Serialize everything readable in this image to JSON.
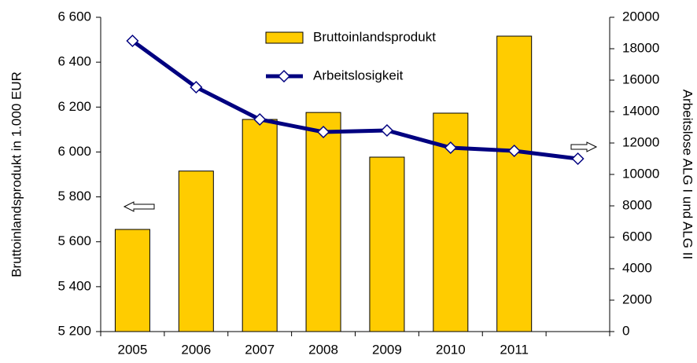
{
  "chart_data": {
    "type": "bar-line",
    "categories": [
      "2005",
      "2006",
      "2007",
      "2008",
      "2009",
      "2010",
      "2011",
      null
    ],
    "series": [
      {
        "name": "Bruttoinlandsprodukt",
        "type": "bar",
        "color": "#ffcc00",
        "values": [
          5655,
          5915,
          6145,
          6176,
          5977,
          6173,
          6516,
          null
        ]
      },
      {
        "name": "Arbeitslosigkeit",
        "type": "line",
        "axis": "y2",
        "color": "#000080",
        "values": [
          18500,
          15550,
          13500,
          12700,
          12800,
          11700,
          11500,
          11000
        ]
      }
    ],
    "ylabel": "Bruttoinlandsprodukt in 1.000 EUR",
    "y2label": "Arbeitslose ALG I und ALG II",
    "ylim": [
      5200,
      6600
    ],
    "yticks": [
      {
        "value": 5200,
        "label": "5 200"
      },
      {
        "value": 5400,
        "label": "5 400"
      },
      {
        "value": 5600,
        "label": "5 600"
      },
      {
        "value": 5800,
        "label": "5 800"
      },
      {
        "value": 6000,
        "label": "6 000"
      },
      {
        "value": 6200,
        "label": "6 200"
      },
      {
        "value": 6400,
        "label": "6 400"
      },
      {
        "value": 6600,
        "label": "6 600"
      }
    ],
    "y2lim": [
      0,
      20000
    ],
    "y2ticks": [
      0,
      2000,
      4000,
      6000,
      8000,
      10000,
      12000,
      14000,
      16000,
      18000,
      20000
    ]
  }
}
